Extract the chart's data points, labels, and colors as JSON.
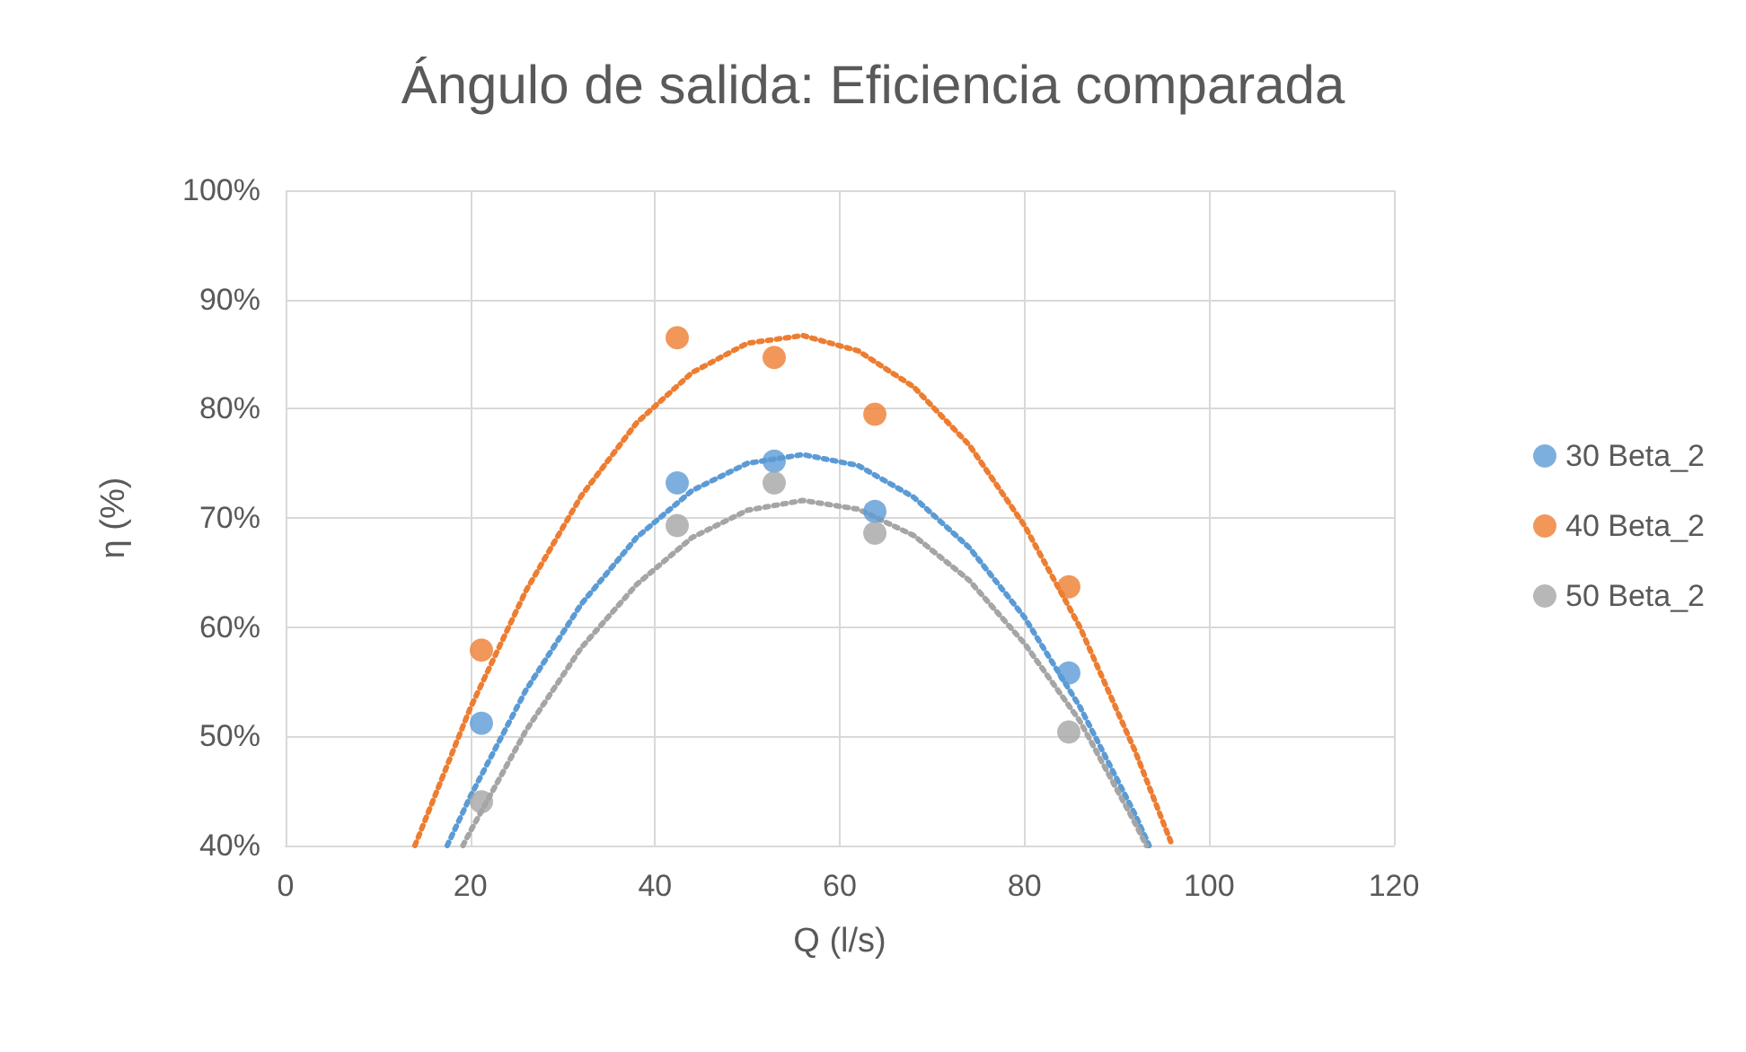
{
  "chart_data": {
    "type": "scatter",
    "title": "Ángulo de salida: Eficiencia comparada",
    "xlabel": "Q (l/s)",
    "ylabel": "η (%)",
    "xlim": [
      0,
      120
    ],
    "xticks": [
      0,
      20,
      40,
      60,
      80,
      100,
      120
    ],
    "ylim": [
      40,
      100
    ],
    "yticks": [
      {
        "value": 40,
        "label": "40%"
      },
      {
        "value": 50,
        "label": "50%"
      },
      {
        "value": 60,
        "label": "60%"
      },
      {
        "value": 70,
        "label": "70%"
      },
      {
        "value": 80,
        "label": "80%"
      },
      {
        "value": 90,
        "label": "90%"
      },
      {
        "value": 100,
        "label": "100%"
      }
    ],
    "grid": true,
    "legend": "right",
    "marker": "circle",
    "series": [
      {
        "name": "30 Beta_2",
        "color": "#5b9bd5",
        "x": [
          21.2,
          42.4,
          52.9,
          63.8,
          84.8
        ],
        "values": [
          51.2,
          73.2,
          75.2,
          70.6,
          55.8
        ]
      },
      {
        "name": "40 Beta_2",
        "color": "#ed7d31",
        "x": [
          21.2,
          42.4,
          52.9,
          63.8,
          84.8
        ],
        "values": [
          57.9,
          86.5,
          84.7,
          79.5,
          63.7
        ]
      },
      {
        "name": "50 Beta_2",
        "color": "#a5a5a5",
        "x": [
          21.2,
          42.4,
          52.9,
          63.8,
          84.8
        ],
        "values": [
          44.0,
          69.3,
          73.2,
          68.6,
          50.4
        ]
      },
      {
        "type": "line",
        "line_style": "dotted",
        "marker": "none",
        "color": "#5b9bd5",
        "x": [
          17.5,
          20,
          26,
          32,
          38,
          44,
          50,
          56,
          62,
          68,
          74,
          80,
          86,
          92,
          93.5
        ],
        "values": [
          40.0,
          44.5,
          54.2,
          62.1,
          68.2,
          72.5,
          75.0,
          75.8,
          74.8,
          71.9,
          67.3,
          60.9,
          52.7,
          42.8,
          40.0
        ]
      },
      {
        "type": "line",
        "line_style": "dotted",
        "marker": "none",
        "color": "#ed7d31",
        "x": [
          14,
          20,
          26,
          32,
          38,
          44,
          50,
          56,
          62,
          68,
          74,
          80,
          86,
          92,
          96
        ],
        "values": [
          40.0,
          52.6,
          63.3,
          72.0,
          78.7,
          83.3,
          86.0,
          86.7,
          85.3,
          82.0,
          76.7,
          69.3,
          60.0,
          48.6,
          40.0
        ]
      },
      {
        "type": "line",
        "line_style": "dotted",
        "marker": "none",
        "color": "#a5a5a5",
        "x": [
          19.2,
          20,
          26,
          32,
          38,
          44,
          50,
          56,
          62,
          68,
          74,
          80,
          86,
          92,
          93.2
        ],
        "values": [
          40.0,
          41.3,
          50.5,
          58.1,
          63.9,
          68.2,
          70.7,
          71.6,
          70.8,
          68.4,
          64.3,
          58.5,
          51.4,
          42.0,
          40.0
        ]
      }
    ]
  }
}
